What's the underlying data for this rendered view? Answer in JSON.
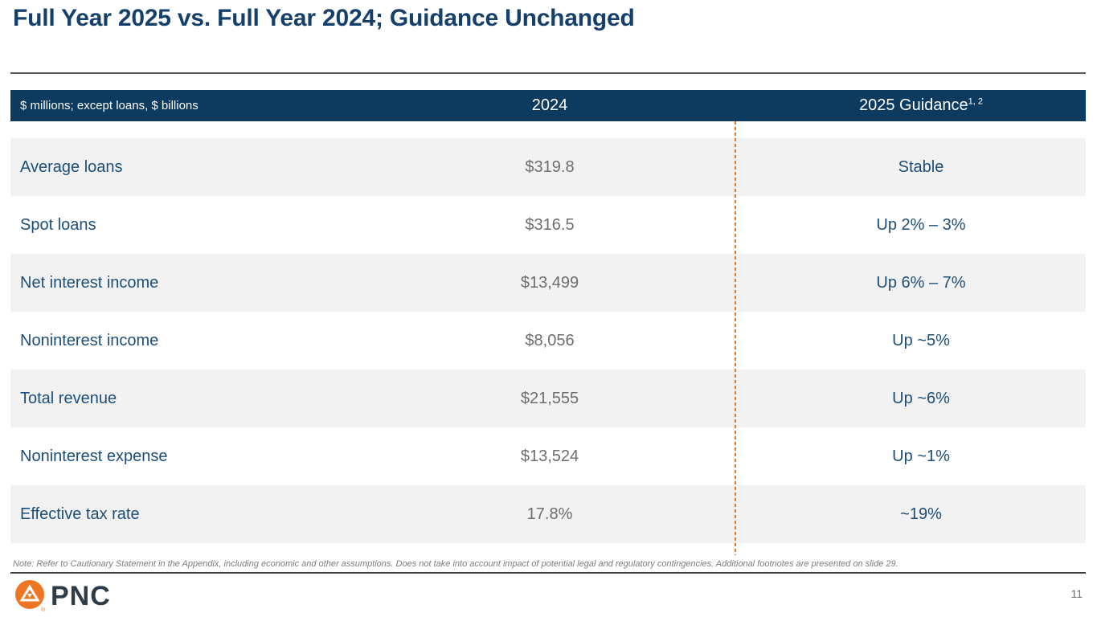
{
  "slide": {
    "title": "Full Year 2025 vs. Full Year 2024; Guidance Unchanged",
    "footnote": "Note: Refer to Cautionary Statement in the Appendix, including economic and other assumptions. Does not take into account impact of potential legal and regulatory contingencies. Additional footnotes are presented on slide 29.",
    "page_number": "11",
    "logo_text": "PNC"
  },
  "colors": {
    "header_navy": "#0d3a5f",
    "title_navy": "#15406c",
    "label_navy": "#1d4e79",
    "value_gray": "#6d6e71",
    "row_stripe": "#f2f2f2",
    "accent_orange": "#e87722",
    "footnote_gray": "#7c7d80"
  },
  "table": {
    "unit_label": "$ millions; except loans, $ billions",
    "columns": [
      {
        "label": "2024",
        "superscript": ""
      },
      {
        "label": "2025 Guidance",
        "superscript": "1, 2"
      }
    ],
    "rows": [
      {
        "label": "Average loans",
        "value_2024": "$319.8",
        "guidance_2025": "Stable"
      },
      {
        "label": "Spot loans",
        "value_2024": "$316.5",
        "guidance_2025": "Up 2% – 3%"
      },
      {
        "label": "Net interest income",
        "value_2024": "$13,499",
        "guidance_2025": "Up 6% – 7%"
      },
      {
        "label": "Noninterest income",
        "value_2024": "$8,056",
        "guidance_2025": "Up ~5%"
      },
      {
        "label": "Total revenue",
        "value_2024": "$21,555",
        "guidance_2025": "Up ~6%"
      },
      {
        "label": "Noninterest expense",
        "value_2024": "$13,524",
        "guidance_2025": "Up ~1%"
      },
      {
        "label": "Effective tax rate",
        "value_2024": "17.8%",
        "guidance_2025": "~19%"
      }
    ]
  }
}
